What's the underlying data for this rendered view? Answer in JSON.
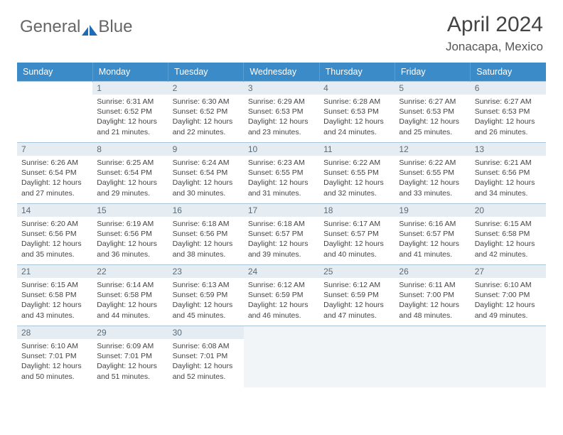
{
  "logo": {
    "word1": "General",
    "word2": "Blue",
    "accent": "#1e6bb8",
    "gray": "#777"
  },
  "title": "April 2024",
  "location": "Jonacapa, Mexico",
  "header_bg": "#3b8bc9",
  "daynum_bg": "#e6edf2",
  "border_color": "#a8c4d8",
  "weekdays": [
    "Sunday",
    "Monday",
    "Tuesday",
    "Wednesday",
    "Thursday",
    "Friday",
    "Saturday"
  ],
  "weeks": [
    [
      {
        "n": "",
        "sr": "",
        "ss": "",
        "dl": ""
      },
      {
        "n": "1",
        "sr": "Sunrise: 6:31 AM",
        "ss": "Sunset: 6:52 PM",
        "dl": "Daylight: 12 hours and 21 minutes."
      },
      {
        "n": "2",
        "sr": "Sunrise: 6:30 AM",
        "ss": "Sunset: 6:52 PM",
        "dl": "Daylight: 12 hours and 22 minutes."
      },
      {
        "n": "3",
        "sr": "Sunrise: 6:29 AM",
        "ss": "Sunset: 6:53 PM",
        "dl": "Daylight: 12 hours and 23 minutes."
      },
      {
        "n": "4",
        "sr": "Sunrise: 6:28 AM",
        "ss": "Sunset: 6:53 PM",
        "dl": "Daylight: 12 hours and 24 minutes."
      },
      {
        "n": "5",
        "sr": "Sunrise: 6:27 AM",
        "ss": "Sunset: 6:53 PM",
        "dl": "Daylight: 12 hours and 25 minutes."
      },
      {
        "n": "6",
        "sr": "Sunrise: 6:27 AM",
        "ss": "Sunset: 6:53 PM",
        "dl": "Daylight: 12 hours and 26 minutes."
      }
    ],
    [
      {
        "n": "7",
        "sr": "Sunrise: 6:26 AM",
        "ss": "Sunset: 6:54 PM",
        "dl": "Daylight: 12 hours and 27 minutes."
      },
      {
        "n": "8",
        "sr": "Sunrise: 6:25 AM",
        "ss": "Sunset: 6:54 PM",
        "dl": "Daylight: 12 hours and 29 minutes."
      },
      {
        "n": "9",
        "sr": "Sunrise: 6:24 AM",
        "ss": "Sunset: 6:54 PM",
        "dl": "Daylight: 12 hours and 30 minutes."
      },
      {
        "n": "10",
        "sr": "Sunrise: 6:23 AM",
        "ss": "Sunset: 6:55 PM",
        "dl": "Daylight: 12 hours and 31 minutes."
      },
      {
        "n": "11",
        "sr": "Sunrise: 6:22 AM",
        "ss": "Sunset: 6:55 PM",
        "dl": "Daylight: 12 hours and 32 minutes."
      },
      {
        "n": "12",
        "sr": "Sunrise: 6:22 AM",
        "ss": "Sunset: 6:55 PM",
        "dl": "Daylight: 12 hours and 33 minutes."
      },
      {
        "n": "13",
        "sr": "Sunrise: 6:21 AM",
        "ss": "Sunset: 6:56 PM",
        "dl": "Daylight: 12 hours and 34 minutes."
      }
    ],
    [
      {
        "n": "14",
        "sr": "Sunrise: 6:20 AM",
        "ss": "Sunset: 6:56 PM",
        "dl": "Daylight: 12 hours and 35 minutes."
      },
      {
        "n": "15",
        "sr": "Sunrise: 6:19 AM",
        "ss": "Sunset: 6:56 PM",
        "dl": "Daylight: 12 hours and 36 minutes."
      },
      {
        "n": "16",
        "sr": "Sunrise: 6:18 AM",
        "ss": "Sunset: 6:56 PM",
        "dl": "Daylight: 12 hours and 38 minutes."
      },
      {
        "n": "17",
        "sr": "Sunrise: 6:18 AM",
        "ss": "Sunset: 6:57 PM",
        "dl": "Daylight: 12 hours and 39 minutes."
      },
      {
        "n": "18",
        "sr": "Sunrise: 6:17 AM",
        "ss": "Sunset: 6:57 PM",
        "dl": "Daylight: 12 hours and 40 minutes."
      },
      {
        "n": "19",
        "sr": "Sunrise: 6:16 AM",
        "ss": "Sunset: 6:57 PM",
        "dl": "Daylight: 12 hours and 41 minutes."
      },
      {
        "n": "20",
        "sr": "Sunrise: 6:15 AM",
        "ss": "Sunset: 6:58 PM",
        "dl": "Daylight: 12 hours and 42 minutes."
      }
    ],
    [
      {
        "n": "21",
        "sr": "Sunrise: 6:15 AM",
        "ss": "Sunset: 6:58 PM",
        "dl": "Daylight: 12 hours and 43 minutes."
      },
      {
        "n": "22",
        "sr": "Sunrise: 6:14 AM",
        "ss": "Sunset: 6:58 PM",
        "dl": "Daylight: 12 hours and 44 minutes."
      },
      {
        "n": "23",
        "sr": "Sunrise: 6:13 AM",
        "ss": "Sunset: 6:59 PM",
        "dl": "Daylight: 12 hours and 45 minutes."
      },
      {
        "n": "24",
        "sr": "Sunrise: 6:12 AM",
        "ss": "Sunset: 6:59 PM",
        "dl": "Daylight: 12 hours and 46 minutes."
      },
      {
        "n": "25",
        "sr": "Sunrise: 6:12 AM",
        "ss": "Sunset: 6:59 PM",
        "dl": "Daylight: 12 hours and 47 minutes."
      },
      {
        "n": "26",
        "sr": "Sunrise: 6:11 AM",
        "ss": "Sunset: 7:00 PM",
        "dl": "Daylight: 12 hours and 48 minutes."
      },
      {
        "n": "27",
        "sr": "Sunrise: 6:10 AM",
        "ss": "Sunset: 7:00 PM",
        "dl": "Daylight: 12 hours and 49 minutes."
      }
    ],
    [
      {
        "n": "28",
        "sr": "Sunrise: 6:10 AM",
        "ss": "Sunset: 7:01 PM",
        "dl": "Daylight: 12 hours and 50 minutes."
      },
      {
        "n": "29",
        "sr": "Sunrise: 6:09 AM",
        "ss": "Sunset: 7:01 PM",
        "dl": "Daylight: 12 hours and 51 minutes."
      },
      {
        "n": "30",
        "sr": "Sunrise: 6:08 AM",
        "ss": "Sunset: 7:01 PM",
        "dl": "Daylight: 12 hours and 52 minutes."
      },
      {
        "n": "",
        "sr": "",
        "ss": "",
        "dl": ""
      },
      {
        "n": "",
        "sr": "",
        "ss": "",
        "dl": ""
      },
      {
        "n": "",
        "sr": "",
        "ss": "",
        "dl": ""
      },
      {
        "n": "",
        "sr": "",
        "ss": "",
        "dl": ""
      }
    ]
  ]
}
